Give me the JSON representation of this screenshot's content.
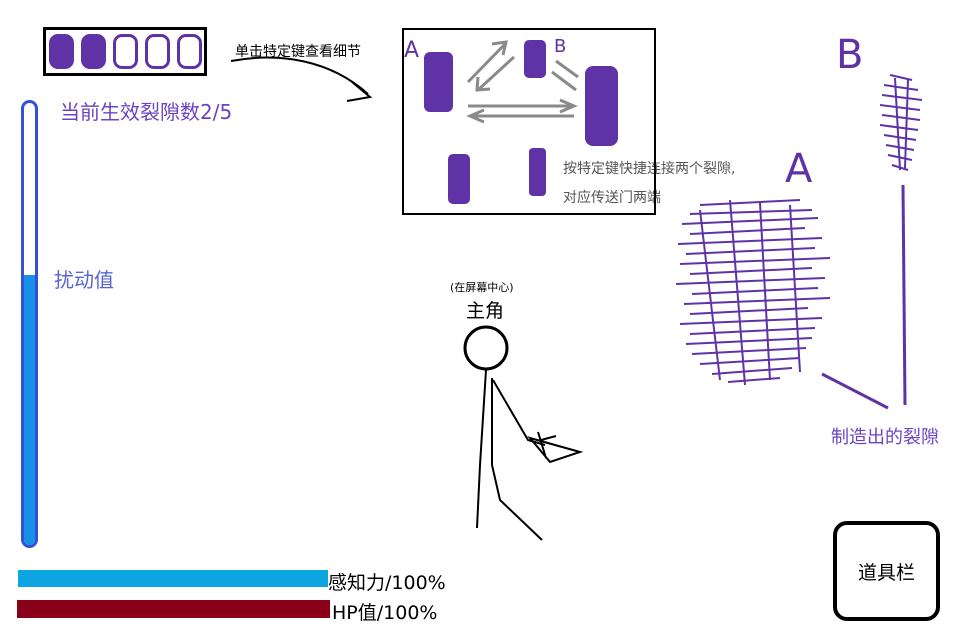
{
  "hud": {
    "rift_slots": {
      "filled": 2,
      "total": 5
    },
    "rift_count_text": "当前生效裂隙数2/5",
    "disturbance_label": "扰动值",
    "disturbance_level": 0.61,
    "perception_label": "感知力/100%",
    "perception_level": 1.0,
    "hp_label": "HP值/100%",
    "hp_level": 1.0,
    "item_bar_label": "道具栏"
  },
  "tips": {
    "click_detail": "单击特定键查看细节",
    "quick_connect_line1": "按特定键快捷连接两个裂隙,",
    "quick_connect_line2": "对应传送门两端"
  },
  "detail_box": {
    "label_a": "A",
    "label_b": "B"
  },
  "hero": {
    "center_note": "(在屏幕中心)",
    "label": "主角"
  },
  "rifts": {
    "label_a": "A",
    "label_b": "B",
    "made_label": "制造出的裂隙"
  },
  "colors": {
    "rift_purple": "#5f33a6",
    "gauge_border": "#3550d6",
    "gauge_fill": "#1591e8",
    "perception": "#0ea6e2",
    "hp": "#8a0019"
  }
}
